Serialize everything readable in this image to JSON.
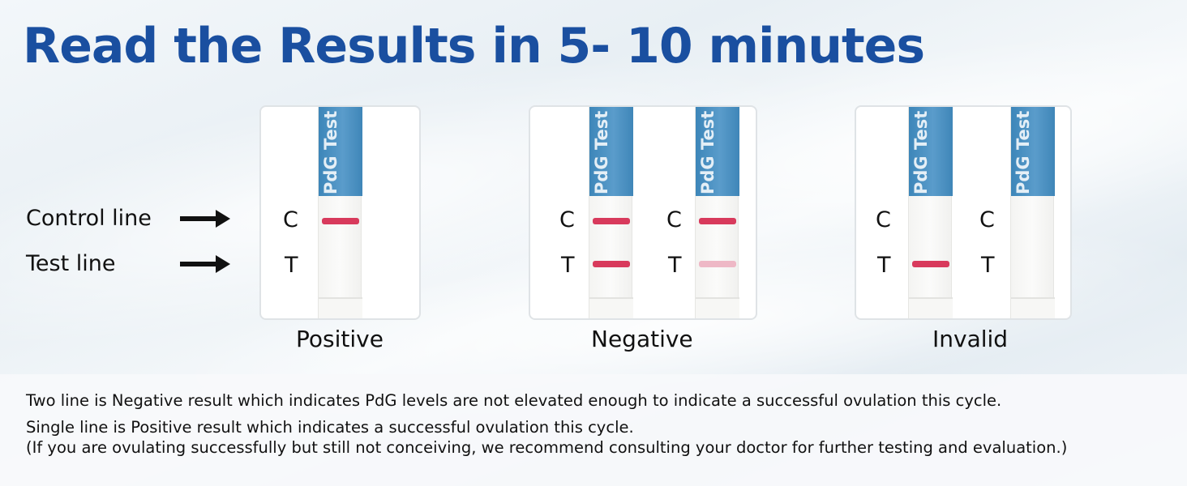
{
  "headline": "Read the Results in 5- 10 minutes",
  "legend": {
    "control_label": "Control line",
    "test_label": "Test line"
  },
  "strip_brand_text": "PdG Test",
  "letters": {
    "control": "C",
    "test": "T"
  },
  "results": {
    "positive": "Positive",
    "negative": "Negative",
    "invalid": "Invalid"
  },
  "colors": {
    "headline": "#1a4fa0",
    "strip_label": "#4a91c3",
    "line_strong": "#d83a5c",
    "line_faint": "#eeb8c6"
  },
  "notes": {
    "negative_note": "Two line is Negative result which indicates PdG levels are not elevated enough to indicate a successful ovulation this cycle.",
    "positive_note": "Single line is Positive result which indicates a successful ovulation this cycle.",
    "advice_note": "(If you are ovulating successfully but still not conceiving, we recommend consulting your doctor for further testing and evaluation.)"
  }
}
